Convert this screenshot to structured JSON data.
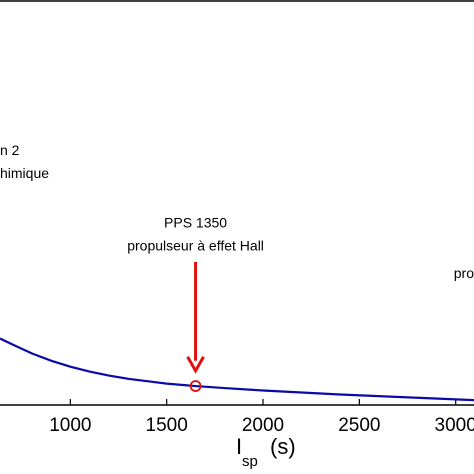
{
  "chart_data": {
    "type": "line",
    "xlabel_main": "I",
    "xlabel_sub": "sp",
    "xlabel_unit": "(s)",
    "xlim": [
      635,
      3095
    ],
    "ylim": [
      0,
      1
    ],
    "grid": false,
    "x_ticks": [
      1000,
      1500,
      2000,
      2500,
      3000
    ],
    "x_tick_labels": [
      "1000",
      "1500",
      "2000",
      "2500",
      "3000"
    ],
    "series": [
      {
        "color": "#0a0aa8",
        "x": [
          635,
          700,
          800,
          900,
          1000,
          1100,
          1200,
          1300,
          1400,
          1500,
          1600,
          1650,
          1800,
          2000,
          2200,
          2400,
          2600,
          2800,
          3000,
          3095
        ],
        "y": [
          0.165,
          0.15,
          0.128,
          0.11,
          0.095,
          0.083,
          0.073,
          0.065,
          0.059,
          0.053,
          0.049,
          0.047,
          0.042,
          0.036,
          0.031,
          0.026,
          0.022,
          0.018,
          0.014,
          0.012
        ]
      }
    ],
    "annotations": [
      {
        "lines": [
          "n 2",
          "himique"
        ],
        "anchor": "start",
        "x": 635,
        "y": 0.62
      },
      {
        "lines": [
          "PPS 1350",
          "propulseur à effet Hall"
        ],
        "anchor": "middle",
        "x": 1650,
        "y": 0.44
      },
      {
        "lines": [
          "pro"
        ],
        "anchor": "start",
        "x": 2990,
        "y": 0.315
      }
    ],
    "highlight_point": {
      "x": 1650,
      "y": 0.047,
      "color": "#dd1111"
    },
    "arrow": {
      "color": "#dd1111",
      "from_y": 0.355,
      "to_y": 0.085,
      "x": 1650
    }
  }
}
